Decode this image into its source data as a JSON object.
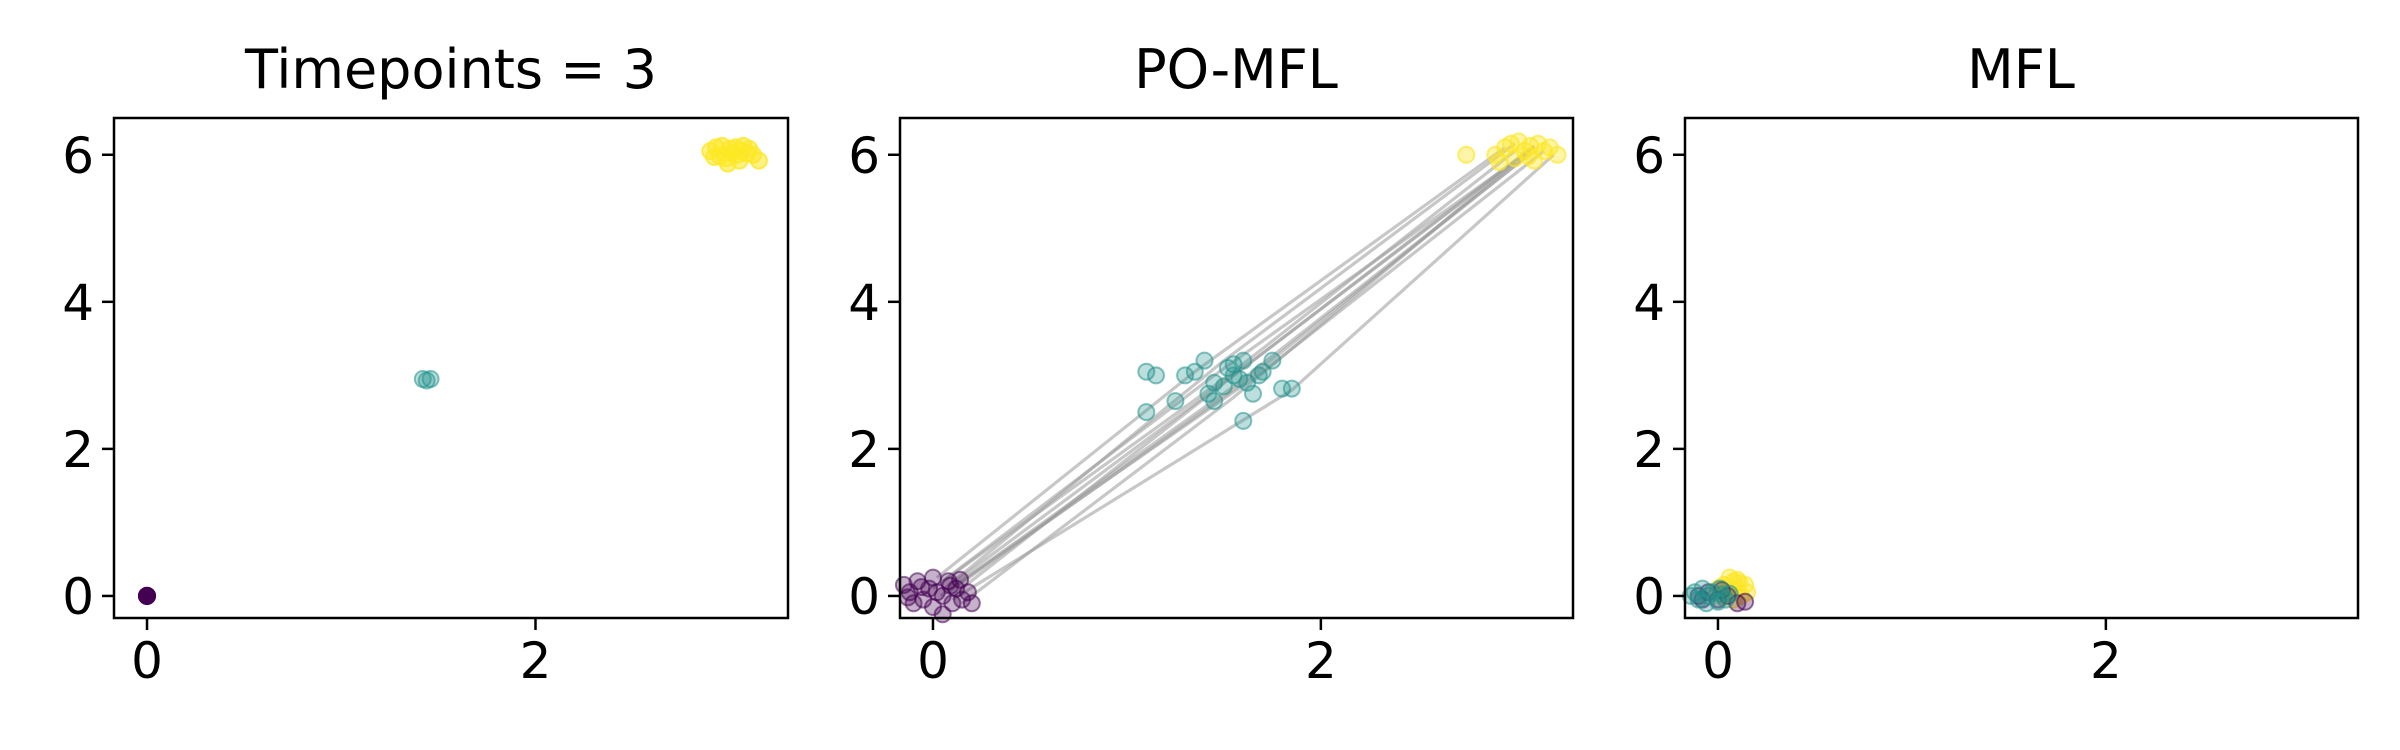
{
  "chart_data": [
    {
      "type": "scatter",
      "title": "Timepoints = 3",
      "xlabel": "",
      "ylabel": "",
      "xlim": [
        -0.17,
        3.3
      ],
      "ylim": [
        -0.3,
        6.5
      ],
      "xticks": [
        0,
        2
      ],
      "yticks": [
        0,
        2,
        4,
        6
      ],
      "grid": false,
      "series": [
        {
          "color": "#440154",
          "opacity": 1.0,
          "points": [
            [
              0.0,
              0.0
            ],
            [
              0.0,
              0.0
            ],
            [
              0.0,
              0.0
            ]
          ]
        },
        {
          "color": "#21918c",
          "opacity": 0.3,
          "points": [
            [
              1.42,
              2.95
            ],
            [
              1.46,
              2.95
            ],
            [
              1.44,
              2.93
            ]
          ]
        },
        {
          "color": "#fde725",
          "opacity": 0.55,
          "points": [
            [
              2.9,
              6.05
            ],
            [
              2.93,
              6.1
            ],
            [
              2.96,
              6.12
            ],
            [
              3.0,
              6.08
            ],
            [
              3.03,
              6.1
            ],
            [
              3.06,
              6.05
            ],
            [
              3.09,
              6.02
            ],
            [
              3.12,
              6.0
            ],
            [
              3.15,
              5.92
            ],
            [
              3.05,
              5.92
            ],
            [
              2.98,
              5.95
            ],
            [
              2.95,
              5.98
            ],
            [
              3.01,
              6.03
            ],
            [
              3.07,
              6.12
            ],
            [
              2.99,
              5.88
            ],
            [
              3.1,
              6.08
            ],
            [
              2.92,
              5.97
            ],
            [
              3.04,
              6.0
            ]
          ]
        }
      ]
    },
    {
      "type": "scatter",
      "title": "PO-MFL",
      "xlabel": "",
      "ylabel": "",
      "xlim": [
        -0.17,
        3.3
      ],
      "ylim": [
        -0.3,
        6.5
      ],
      "xticks": [
        0,
        2
      ],
      "yticks": [
        0,
        2,
        4,
        6
      ],
      "grid": false,
      "trajectories_color": "#999999",
      "trajectories": [
        [
          [
            0.0,
            0.1
          ],
          [
            1.5,
            2.95
          ],
          [
            3.0,
            6.05
          ]
        ],
        [
          [
            0.05,
            0.2
          ],
          [
            1.45,
            3.0
          ],
          [
            3.1,
            6.1
          ]
        ],
        [
          [
            0.1,
            0.0
          ],
          [
            1.6,
            3.1
          ],
          [
            3.05,
            6.0
          ]
        ],
        [
          [
            0.12,
            0.15
          ],
          [
            1.7,
            3.05
          ],
          [
            3.15,
            6.05
          ]
        ],
        [
          [
            0.02,
            0.25
          ],
          [
            1.35,
            3.05
          ],
          [
            2.95,
            6.1
          ]
        ],
        [
          [
            0.15,
            -0.1
          ],
          [
            1.55,
            2.7
          ],
          [
            3.0,
            5.9
          ]
        ],
        [
          [
            0.1,
            -0.05
          ],
          [
            1.85,
            2.8
          ],
          [
            3.2,
            6.0
          ]
        ],
        [
          [
            0.08,
            0.05
          ],
          [
            1.6,
            2.9
          ],
          [
            3.08,
            6.02
          ]
        ],
        [
          [
            0.06,
            0.1
          ],
          [
            1.5,
            3.2
          ],
          [
            3.0,
            6.15
          ]
        ],
        [
          [
            0.12,
            0.2
          ],
          [
            1.65,
            3.2
          ],
          [
            3.1,
            6.12
          ]
        ],
        [
          [
            0.04,
            0.0
          ],
          [
            1.55,
            2.85
          ],
          [
            3.05,
            5.95
          ]
        ]
      ],
      "series": [
        {
          "color": "#440154",
          "opacity": 0.3,
          "points": [
            [
              -0.15,
              0.15
            ],
            [
              -0.12,
              0.05
            ],
            [
              -0.08,
              0.2
            ],
            [
              -0.05,
              -0.05
            ],
            [
              -0.02,
              0.1
            ],
            [
              0.0,
              -0.15
            ],
            [
              0.02,
              0.05
            ],
            [
              0.05,
              0.0
            ],
            [
              0.08,
              0.2
            ],
            [
              0.1,
              -0.1
            ],
            [
              0.12,
              0.1
            ],
            [
              0.15,
              -0.05
            ],
            [
              0.18,
              0.05
            ],
            [
              0.2,
              -0.1
            ],
            [
              -0.1,
              -0.1
            ],
            [
              0.05,
              -0.25
            ],
            [
              0.0,
              0.25
            ],
            [
              -0.06,
              0.12
            ],
            [
              0.14,
              0.22
            ],
            [
              0.09,
              0.14
            ],
            [
              -0.13,
              -0.02
            ]
          ]
        },
        {
          "color": "#21918c",
          "opacity": 0.3,
          "points": [
            [
              1.1,
              3.05
            ],
            [
              1.15,
              3.0
            ],
            [
              1.1,
              2.5
            ],
            [
              1.25,
              2.65
            ],
            [
              1.3,
              3.0
            ],
            [
              1.35,
              3.05
            ],
            [
              1.4,
              3.2
            ],
            [
              1.42,
              2.75
            ],
            [
              1.45,
              2.9
            ],
            [
              1.5,
              2.85
            ],
            [
              1.52,
              3.1
            ],
            [
              1.55,
              3.0
            ],
            [
              1.58,
              2.95
            ],
            [
              1.6,
              3.2
            ],
            [
              1.62,
              2.9
            ],
            [
              1.65,
              2.75
            ],
            [
              1.68,
              3.0
            ],
            [
              1.7,
              3.05
            ],
            [
              1.75,
              3.2
            ],
            [
              1.8,
              2.82
            ],
            [
              1.85,
              2.82
            ],
            [
              1.6,
              2.38
            ],
            [
              1.45,
              2.65
            ],
            [
              1.55,
              3.15
            ]
          ]
        },
        {
          "color": "#fde725",
          "opacity": 0.4,
          "points": [
            [
              2.75,
              6.0
            ],
            [
              2.9,
              6.0
            ],
            [
              2.95,
              6.1
            ],
            [
              2.98,
              6.15
            ],
            [
              3.0,
              5.95
            ],
            [
              3.05,
              6.05
            ],
            [
              3.08,
              6.12
            ],
            [
              3.1,
              5.92
            ],
            [
              3.15,
              6.05
            ],
            [
              3.18,
              6.1
            ],
            [
              3.22,
              6.0
            ],
            [
              3.02,
              6.18
            ],
            [
              3.12,
              6.15
            ],
            [
              2.92,
              5.9
            ],
            [
              3.07,
              5.98
            ]
          ]
        }
      ]
    },
    {
      "type": "scatter",
      "title": "MFL",
      "xlabel": "",
      "ylabel": "",
      "xlim": [
        -0.17,
        3.3
      ],
      "ylim": [
        -0.3,
        6.5
      ],
      "xticks": [
        0,
        2
      ],
      "yticks": [
        0,
        2,
        4,
        6
      ],
      "grid": false,
      "series": [
        {
          "color": "#fde725",
          "opacity": 0.4,
          "points": [
            [
              0.0,
              0.1
            ],
            [
              0.03,
              0.15
            ],
            [
              0.05,
              0.05
            ],
            [
              0.08,
              0.2
            ],
            [
              0.1,
              0.1
            ],
            [
              0.12,
              0.0
            ],
            [
              0.14,
              0.15
            ],
            [
              0.06,
              0.25
            ],
            [
              0.02,
              0.0
            ],
            [
              0.1,
              0.22
            ],
            [
              0.15,
              0.05
            ],
            [
              0.08,
              -0.05
            ],
            [
              0.11,
              0.18
            ],
            [
              0.04,
              0.12
            ]
          ]
        },
        {
          "color": "#440154",
          "opacity": 0.3,
          "points": [
            [
              -0.1,
              0.0
            ],
            [
              -0.05,
              0.05
            ],
            [
              0.0,
              -0.05
            ],
            [
              0.05,
              0.0
            ],
            [
              0.1,
              -0.1
            ],
            [
              0.14,
              -0.08
            ],
            [
              -0.08,
              -0.05
            ],
            [
              0.02,
              0.08
            ]
          ]
        },
        {
          "color": "#21918c",
          "opacity": 0.3,
          "points": [
            [
              -0.12,
              0.05
            ],
            [
              -0.1,
              -0.05
            ],
            [
              -0.08,
              0.1
            ],
            [
              -0.05,
              0.0
            ],
            [
              -0.03,
              0.05
            ],
            [
              0.0,
              -0.08
            ],
            [
              0.02,
              0.02
            ],
            [
              0.04,
              -0.05
            ],
            [
              -0.06,
              -0.1
            ],
            [
              0.01,
              0.1
            ],
            [
              -0.14,
              0.0
            ],
            [
              0.06,
              0.03
            ]
          ]
        }
      ]
    }
  ]
}
